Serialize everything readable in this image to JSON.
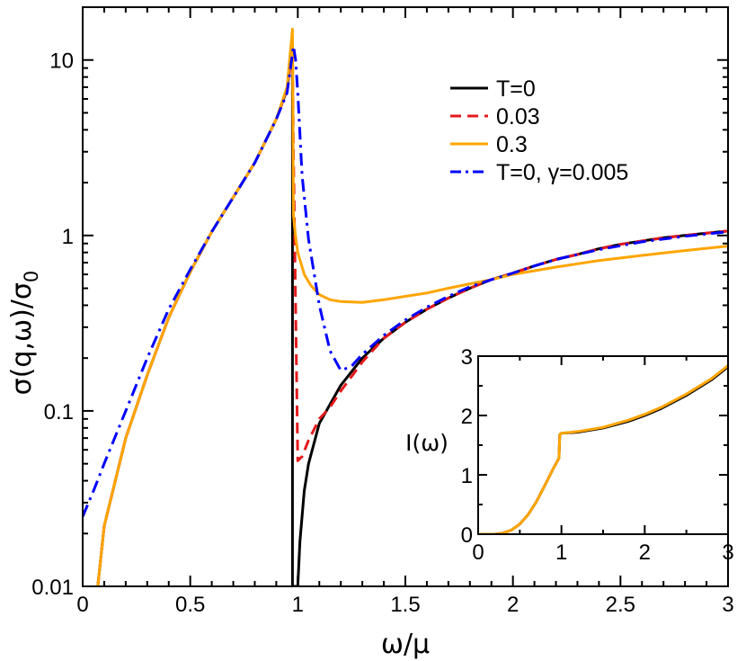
{
  "chart_data": [
    {
      "type": "line",
      "xlabel": "ω/μ",
      "ylabel": "σ(q,ω)/σ",
      "ylabel_sub": "0",
      "xlim": [
        0,
        3
      ],
      "ylim": [
        0.01,
        20
      ],
      "y_scale": "log",
      "x_ticks": [
        0,
        0.5,
        1,
        1.5,
        2,
        2.5,
        3
      ],
      "x_tick_labels": [
        "0",
        "0.5",
        "1",
        "1.5",
        "2",
        "2.5",
        "3"
      ],
      "y_ticks": [
        0.01,
        0.1,
        1,
        10
      ],
      "y_tick_labels": [
        "0.01",
        "0.1",
        "1",
        "10"
      ],
      "legend_position": "top-right",
      "series": [
        {
          "name": "T=0",
          "color": "#000000",
          "dash": "solid",
          "x": [
            0.07,
            0.1,
            0.2,
            0.3,
            0.4,
            0.5,
            0.6,
            0.7,
            0.8,
            0.9,
            0.95,
            0.975,
            0.975,
            0.975,
            1.0,
            1.01,
            1.03,
            1.05,
            1.1,
            1.2,
            1.3,
            1.4,
            1.5,
            1.6,
            1.7,
            1.8,
            1.9,
            2.0,
            2.1,
            2.2,
            2.3,
            2.4,
            2.5,
            2.6,
            2.7,
            2.8,
            2.9,
            3.0
          ],
          "y": [
            0.01,
            0.022,
            0.07,
            0.16,
            0.34,
            0.62,
            1.05,
            1.65,
            2.6,
            4.6,
            6.8,
            12,
            3,
            0.01,
            0.01,
            0.018,
            0.035,
            0.05,
            0.085,
            0.14,
            0.2,
            0.26,
            0.32,
            0.38,
            0.44,
            0.5,
            0.56,
            0.61,
            0.67,
            0.73,
            0.78,
            0.84,
            0.89,
            0.93,
            0.97,
            1.0,
            1.03,
            1.06
          ]
        },
        {
          "name": "0.03",
          "color": "#e41a1c",
          "dash": "dashed",
          "x": [
            0.07,
            0.1,
            0.2,
            0.3,
            0.4,
            0.5,
            0.6,
            0.7,
            0.8,
            0.9,
            0.95,
            0.975,
            0.98,
            1.0,
            1.02,
            1.05,
            1.1,
            1.15,
            1.2,
            1.3,
            1.4,
            1.5,
            1.6,
            1.7,
            1.8,
            1.9,
            2.0,
            2.1,
            2.2,
            2.3,
            2.4,
            2.5,
            2.6,
            2.7,
            2.8,
            2.9,
            3.0
          ],
          "y": [
            0.01,
            0.022,
            0.07,
            0.16,
            0.34,
            0.62,
            1.05,
            1.65,
            2.6,
            4.6,
            6.8,
            12,
            3,
            0.052,
            0.055,
            0.068,
            0.09,
            0.105,
            0.13,
            0.19,
            0.26,
            0.32,
            0.38,
            0.44,
            0.5,
            0.56,
            0.61,
            0.67,
            0.73,
            0.78,
            0.84,
            0.89,
            0.93,
            0.97,
            1.0,
            1.03,
            1.06
          ]
        },
        {
          "name": "0.3",
          "color": "#ffa500",
          "dash": "solid",
          "x": [
            0.07,
            0.1,
            0.2,
            0.3,
            0.4,
            0.5,
            0.6,
            0.7,
            0.8,
            0.9,
            0.95,
            0.975,
            0.98,
            0.99,
            1.0,
            1.03,
            1.06,
            1.1,
            1.15,
            1.2,
            1.3,
            1.4,
            1.5,
            1.6,
            1.7,
            1.8,
            1.9,
            2.0,
            2.2,
            2.4,
            2.6,
            2.8,
            3.0
          ],
          "y": [
            0.01,
            0.022,
            0.07,
            0.16,
            0.34,
            0.62,
            1.05,
            1.65,
            2.6,
            4.6,
            7.0,
            15,
            1.3,
            0.98,
            0.8,
            0.6,
            0.52,
            0.46,
            0.43,
            0.42,
            0.415,
            0.43,
            0.45,
            0.47,
            0.5,
            0.53,
            0.56,
            0.6,
            0.66,
            0.72,
            0.77,
            0.82,
            0.87
          ]
        },
        {
          "name": "T=0, γ=0.005",
          "color": "#0000ff",
          "dash": "dashdot",
          "x": [
            0.0,
            0.05,
            0.1,
            0.2,
            0.3,
            0.4,
            0.5,
            0.6,
            0.7,
            0.8,
            0.9,
            0.95,
            0.98,
            0.99,
            1.0,
            1.02,
            1.05,
            1.1,
            1.15,
            1.2,
            1.25,
            1.3,
            1.4,
            1.5,
            1.6,
            1.7,
            1.8,
            1.9,
            2.0,
            2.1,
            2.2,
            2.4,
            2.6,
            2.8,
            3.0
          ],
          "y": [
            0.025,
            0.035,
            0.05,
            0.1,
            0.2,
            0.38,
            0.64,
            1.05,
            1.65,
            2.6,
            4.6,
            6.5,
            12,
            10,
            6.5,
            2.2,
            0.95,
            0.4,
            0.22,
            0.17,
            0.18,
            0.21,
            0.27,
            0.33,
            0.39,
            0.45,
            0.51,
            0.56,
            0.61,
            0.67,
            0.73,
            0.83,
            0.92,
            0.99,
            1.05
          ]
        }
      ]
    },
    {
      "type": "line",
      "ylabel": "I(ω)",
      "xlim": [
        0,
        3
      ],
      "ylim": [
        0,
        3
      ],
      "x_ticks": [
        0,
        1,
        2,
        3
      ],
      "x_tick_labels": [
        "0",
        "1",
        "2",
        "3"
      ],
      "y_ticks": [
        0,
        1,
        2,
        3
      ],
      "y_tick_labels": [
        "0",
        "1",
        "2",
        "3"
      ],
      "series": [
        {
          "color": "#000000",
          "x": [
            0,
            0.2,
            0.3,
            0.4,
            0.5,
            0.6,
            0.7,
            0.8,
            0.9,
            0.97,
            0.98,
            1.0,
            1.2,
            1.5,
            1.8,
            2.0,
            2.2,
            2.5,
            2.8,
            3.0
          ],
          "y": [
            0,
            0,
            0.02,
            0.07,
            0.17,
            0.33,
            0.55,
            0.82,
            1.1,
            1.28,
            1.68,
            1.7,
            1.72,
            1.79,
            1.9,
            2.0,
            2.12,
            2.34,
            2.6,
            2.82
          ]
        },
        {
          "color": "#ffa500",
          "x": [
            0,
            0.2,
            0.3,
            0.4,
            0.5,
            0.6,
            0.7,
            0.8,
            0.9,
            0.97,
            0.98,
            1.0,
            1.2,
            1.5,
            1.8,
            2.0,
            2.2,
            2.5,
            2.8,
            3.0
          ],
          "y": [
            0,
            0,
            0.02,
            0.07,
            0.17,
            0.33,
            0.55,
            0.82,
            1.1,
            1.28,
            1.68,
            1.7,
            1.73,
            1.8,
            1.92,
            2.02,
            2.14,
            2.36,
            2.62,
            2.84
          ]
        }
      ]
    }
  ]
}
